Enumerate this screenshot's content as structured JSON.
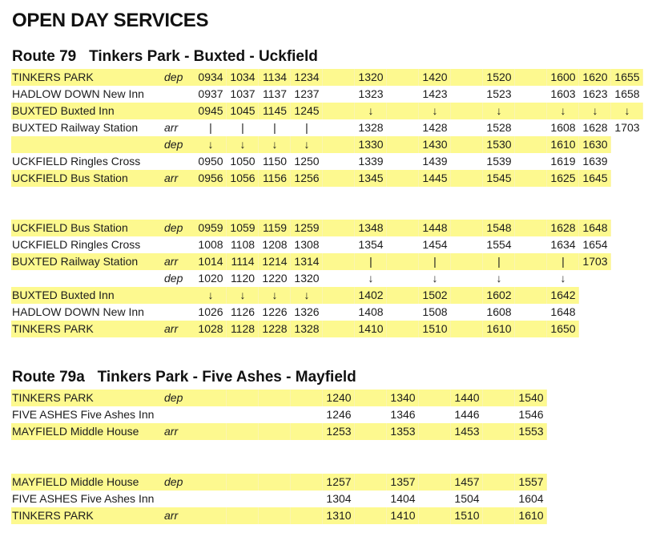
{
  "page_title": "OPEN DAY SERVICES",
  "colors": {
    "highlight": "#fdf98f",
    "text": "#1c1c1c"
  },
  "route79": {
    "title": "Route 79   Tinkers Park - Buxted - Uckfield",
    "outbound": {
      "fill_widths": [
        14,
        14,
        14,
        14,
        14,
        14,
        14
      ],
      "rows": [
        {
          "stop": "TINKERS PARK",
          "io": "dep",
          "hl": true,
          "cells": [
            "0934",
            "1034",
            "1134",
            "1234",
            "",
            "1320",
            "",
            "1420",
            "",
            "1520",
            "",
            "1600",
            "1620",
            "1655"
          ]
        },
        {
          "stop": "HADLOW DOWN New Inn",
          "io": "",
          "hl": false,
          "cells": [
            "0937",
            "1037",
            "1137",
            "1237",
            "",
            "1323",
            "",
            "1423",
            "",
            "1523",
            "",
            "1603",
            "1623",
            "1658"
          ]
        },
        {
          "stop": "BUXTED Buxted Inn",
          "io": "",
          "hl": true,
          "cells": [
            "0945",
            "1045",
            "1145",
            "1245",
            "",
            "↓",
            "",
            "↓",
            "",
            "↓",
            "",
            "↓",
            "↓",
            "↓"
          ]
        },
        {
          "stop": "BUXTED Railway Station",
          "io": "arr",
          "hl": false,
          "cells": [
            "|",
            "|",
            "|",
            "|",
            "",
            "1328",
            "",
            "1428",
            "",
            "1528",
            "",
            "1608",
            "1628",
            "1703"
          ]
        },
        {
          "stop": "",
          "io": "dep",
          "hl": true,
          "cells": [
            "↓",
            "↓",
            "↓",
            "↓",
            "",
            "1330",
            "",
            "1430",
            "",
            "1530",
            "",
            "1610",
            "1630"
          ]
        },
        {
          "stop": "UCKFIELD Ringles Cross",
          "io": "",
          "hl": false,
          "cells": [
            "0950",
            "1050",
            "1150",
            "1250",
            "",
            "1339",
            "",
            "1439",
            "",
            "1539",
            "",
            "1619",
            "1639"
          ]
        },
        {
          "stop": "UCKFIELD Bus Station",
          "io": "arr",
          "hl": true,
          "cells": [
            "0956",
            "1056",
            "1156",
            "1256",
            "",
            "1345",
            "",
            "1445",
            "",
            "1545",
            "",
            "1625",
            "1645"
          ]
        }
      ]
    },
    "inbound": {
      "rows": [
        {
          "stop": "UCKFIELD Bus Station",
          "io": "dep",
          "hl": true,
          "cells": [
            "0959",
            "1059",
            "1159",
            "1259",
            "",
            "1348",
            "",
            "1448",
            "",
            "1548",
            "",
            "1628",
            "1648"
          ]
        },
        {
          "stop": "UCKFIELD Ringles Cross",
          "io": "",
          "hl": false,
          "cells": [
            "1008",
            "1108",
            "1208",
            "1308",
            "",
            "1354",
            "",
            "1454",
            "",
            "1554",
            "",
            "1634",
            "1654"
          ]
        },
        {
          "stop": "BUXTED Railway Station",
          "io": "arr",
          "hl": true,
          "cells": [
            "1014",
            "1114",
            "1214",
            "1314",
            "",
            "|",
            "",
            "|",
            "",
            "|",
            "",
            "|",
            "1703"
          ]
        },
        {
          "stop": "",
          "io": "dep",
          "hl": false,
          "cells": [
            "1020",
            "1120",
            "1220",
            "1320",
            "",
            "↓",
            "",
            "↓",
            "",
            "↓",
            "",
            "↓"
          ]
        },
        {
          "stop": "BUXTED Buxted Inn",
          "io": "",
          "hl": true,
          "cells": [
            "↓",
            "↓",
            "↓",
            "↓",
            "",
            "1402",
            "",
            "1502",
            "",
            "1602",
            "",
            "1642"
          ]
        },
        {
          "stop": "HADLOW DOWN New Inn",
          "io": "",
          "hl": false,
          "cells": [
            "1026",
            "1126",
            "1226",
            "1326",
            "",
            "1408",
            "",
            "1508",
            "",
            "1608",
            "",
            "1648"
          ]
        },
        {
          "stop": "TINKERS PARK",
          "io": "arr",
          "hl": true,
          "cells": [
            "1028",
            "1128",
            "1228",
            "1328",
            "",
            "1410",
            "",
            "1510",
            "",
            "1610",
            "",
            "1650"
          ]
        }
      ]
    }
  },
  "route79a": {
    "title": "Route 79a   Tinkers Park - Five Ashes - Mayfield",
    "outbound": {
      "rows": [
        {
          "stop": "TINKERS PARK",
          "io": "dep",
          "hl": true,
          "cells": [
            "",
            "",
            "",
            "",
            "1240",
            "",
            "1340",
            "",
            "1440",
            "",
            "1540"
          ]
        },
        {
          "stop": "FIVE ASHES Five Ashes Inn",
          "io": "",
          "hl": false,
          "cells": [
            "",
            "",
            "",
            "",
            "1246",
            "",
            "1346",
            "",
            "1446",
            "",
            "1546"
          ]
        },
        {
          "stop": "MAYFIELD Middle House",
          "io": "arr",
          "hl": true,
          "cells": [
            "",
            "",
            "",
            "",
            "1253",
            "",
            "1353",
            "",
            "1453",
            "",
            "1553"
          ]
        }
      ]
    },
    "inbound": {
      "rows": [
        {
          "stop": "MAYFIELD Middle House",
          "io": "dep",
          "hl": true,
          "cells": [
            "",
            "",
            "",
            "",
            "1257",
            "",
            "1357",
            "",
            "1457",
            "",
            "1557"
          ]
        },
        {
          "stop": "FIVE ASHES Five Ashes Inn",
          "io": "",
          "hl": false,
          "cells": [
            "",
            "",
            "",
            "",
            "1304",
            "",
            "1404",
            "",
            "1504",
            "",
            "1604"
          ]
        },
        {
          "stop": "TINKERS PARK",
          "io": "arr",
          "hl": true,
          "cells": [
            "",
            "",
            "",
            "",
            "1310",
            "",
            "1410",
            "",
            "1510",
            "",
            "1610"
          ]
        }
      ]
    }
  }
}
